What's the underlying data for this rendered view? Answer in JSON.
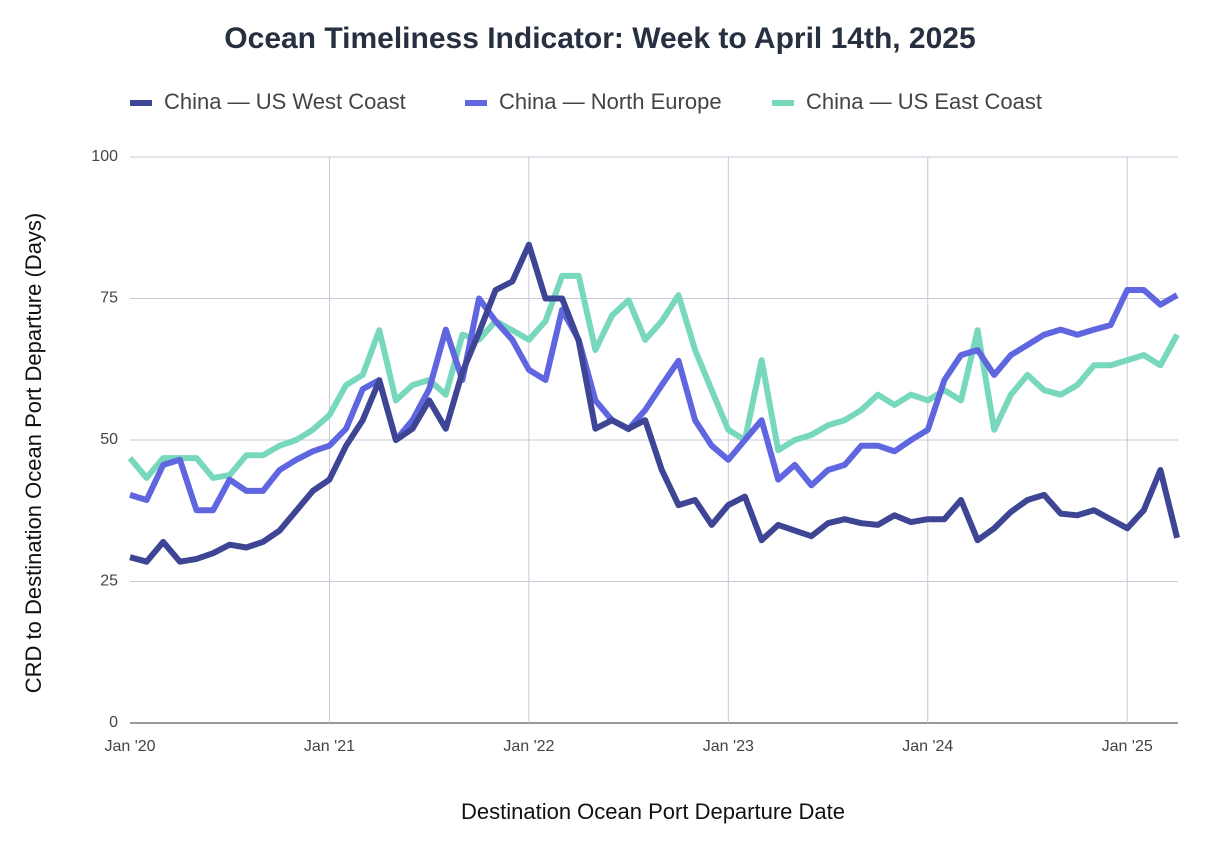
{
  "chart_data": {
    "type": "line",
    "title": "Ocean Timeliness Indicator: Week to April 14th, 2025",
    "x_label": "Destination Ocean Port Departure Date",
    "y_label": "CRD to Destination Ocean Port Departure (Days)",
    "categories": [
      "Jan '20",
      null,
      null,
      null,
      null,
      null,
      null,
      null,
      null,
      null,
      null,
      null,
      "Jan '21",
      null,
      null,
      null,
      null,
      null,
      null,
      null,
      null,
      null,
      null,
      null,
      "Jan '22",
      null,
      null,
      null,
      null,
      null,
      null,
      null,
      null,
      null,
      null,
      null,
      "Jan '23",
      null,
      null,
      null,
      null,
      null,
      null,
      null,
      null,
      null,
      null,
      null,
      "Jan '24",
      null,
      null,
      null,
      null,
      null,
      null,
      null,
      null,
      null,
      null,
      null,
      "Jan '25",
      null,
      null,
      null
    ],
    "series": [
      {
        "name": "China — US West Coast",
        "color": "#3d4594",
        "values": [
          29.3,
          28.5,
          32,
          28.5,
          29,
          30,
          31.5,
          31,
          32,
          34,
          37.5,
          41,
          43,
          49,
          53.5,
          60.5,
          50,
          52,
          57,
          52,
          62,
          69,
          76.5,
          78,
          84.5,
          75,
          75,
          67.5,
          52,
          53.5,
          52,
          53.5,
          44.7,
          38.5,
          39.4,
          35,
          38.5,
          40,
          32.3,
          35,
          34,
          33,
          35.3,
          36,
          35.3,
          35,
          36.7,
          35.5,
          36,
          36,
          39.4,
          32.3,
          34.4,
          37.3,
          39.4,
          40.3,
          37,
          36.7,
          37.6,
          36,
          34.4,
          37.6,
          44.7,
          32.7
        ]
      },
      {
        "name": "China — North Europe",
        "color": "#5f66e0",
        "values": [
          40.3,
          39.4,
          45.6,
          46.5,
          37.6,
          37.6,
          43,
          41,
          41,
          44.7,
          46.5,
          48,
          49,
          52,
          59,
          60.6,
          50,
          53.5,
          59,
          69.5,
          60.6,
          75,
          71,
          67.7,
          62.4,
          60.6,
          73,
          67.7,
          57,
          53.5,
          51.9,
          55.3,
          59.7,
          64,
          53.5,
          49,
          46.5,
          50,
          53.5,
          43,
          45.6,
          42,
          44.7,
          45.6,
          49,
          49,
          48,
          50,
          51.8,
          60.6,
          65,
          65.9,
          61.5,
          65,
          66.8,
          68.6,
          69.5,
          68.6,
          69.5,
          70.3,
          76.5,
          76.5,
          73.9,
          75.6
        ]
      },
      {
        "name": "China — US East Coast",
        "color": "#78d8bd",
        "values": [
          46.8,
          43.3,
          46.8,
          46.8,
          46.8,
          43.3,
          43.8,
          47.3,
          47.3,
          49,
          50,
          51.8,
          54.4,
          59.7,
          61.5,
          69.4,
          57,
          59.7,
          60.6,
          58,
          68.6,
          67.7,
          71,
          69.4,
          67.7,
          71,
          79,
          79,
          65.9,
          72,
          74.7,
          67.7,
          71,
          75.6,
          65.9,
          58.8,
          51.8,
          50,
          64.1,
          48.2,
          50,
          50.9,
          52.6,
          53.5,
          55.3,
          58,
          56.2,
          58,
          57,
          58.8,
          57,
          69.4,
          51.8,
          58,
          61.5,
          58.8,
          58,
          59.7,
          63.2,
          63.2,
          64.1,
          65,
          63.2,
          68.6
        ]
      }
    ],
    "ylim": [
      0,
      100
    ],
    "yticks": [
      0,
      25,
      50,
      75,
      100
    ],
    "grid": true,
    "legend": "top"
  }
}
